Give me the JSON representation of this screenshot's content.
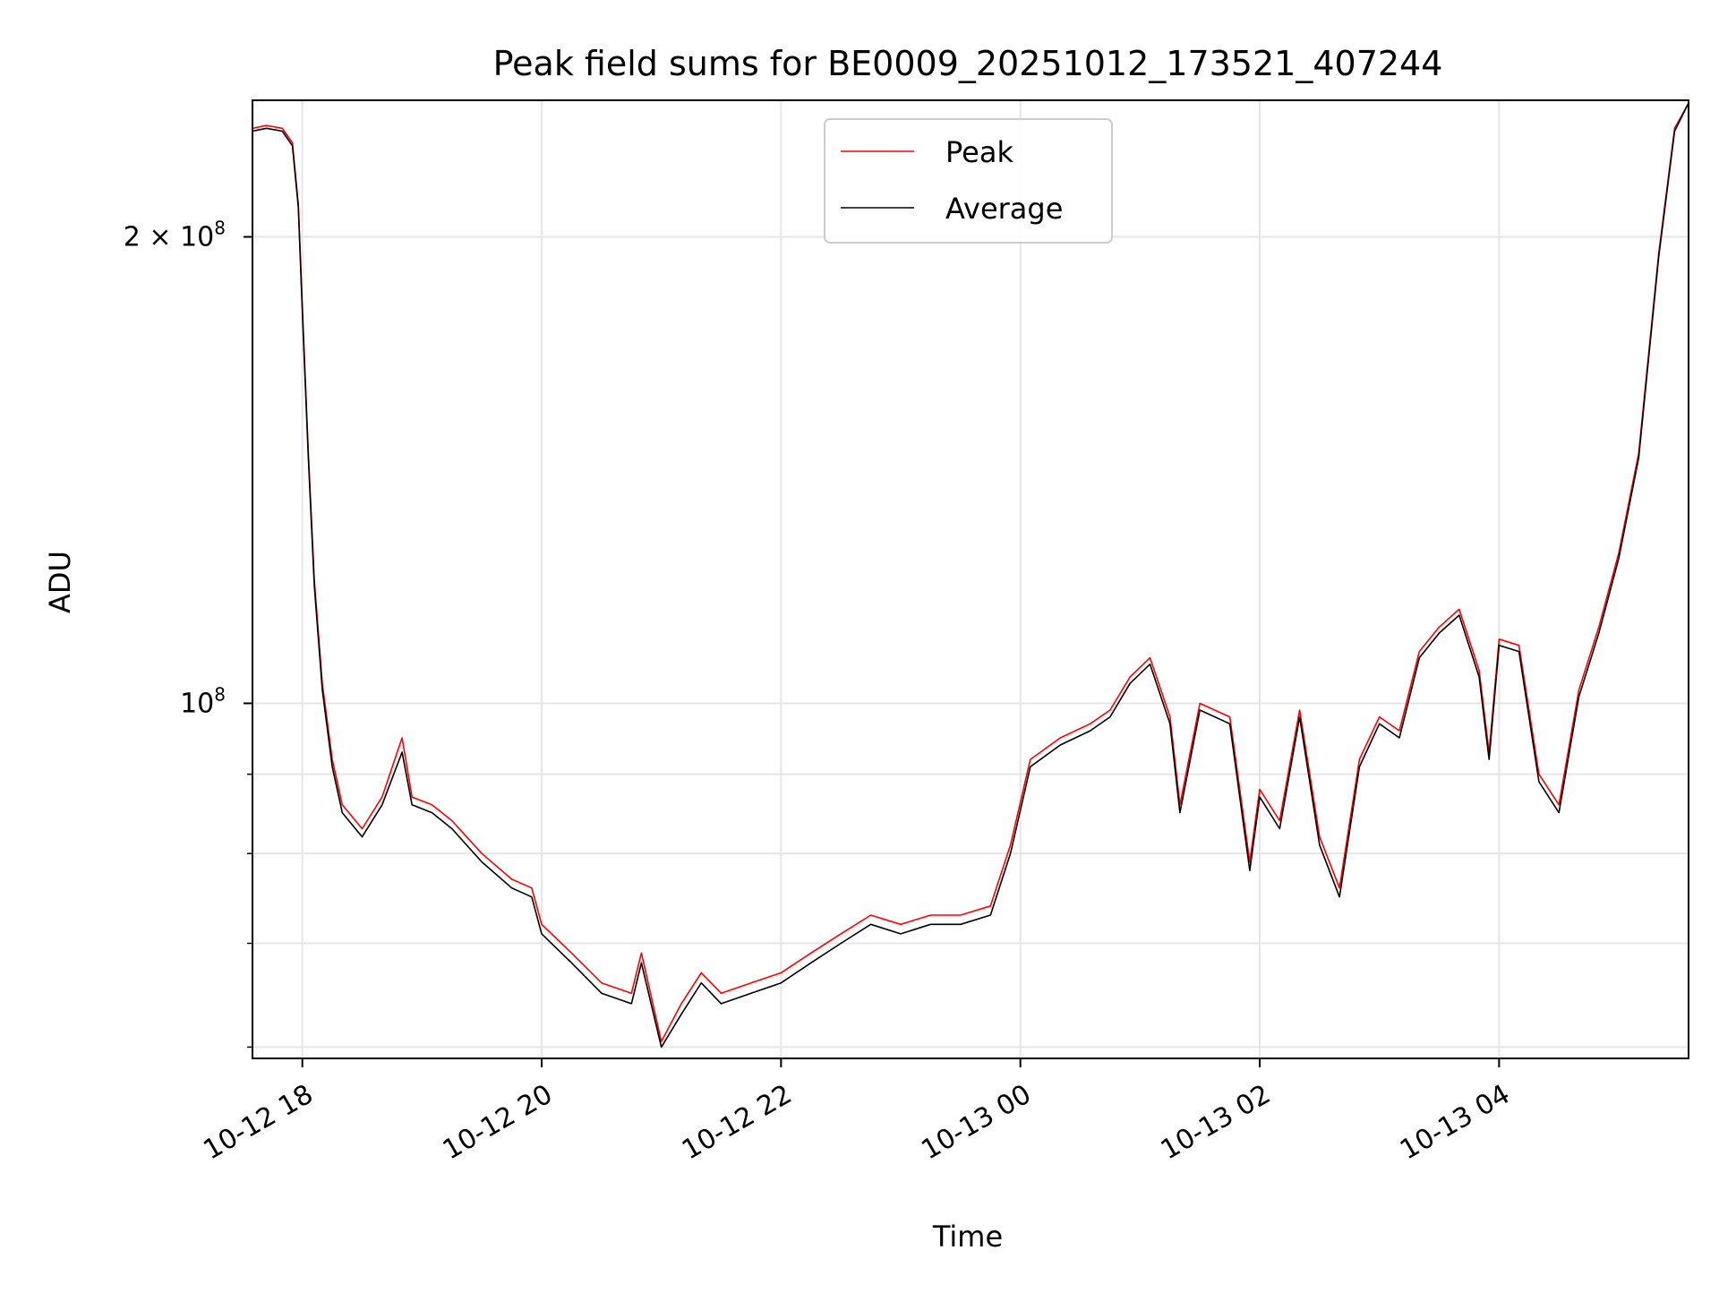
{
  "chart_data": {
    "type": "line",
    "title": "Peak field sums for BE0009_20251012_173521_407244",
    "xlabel": "Time",
    "ylabel": "ADU",
    "yscale": "log",
    "ylim": [
      59000000,
      245000000
    ],
    "xlim": [
      "2025-10-12 17:35",
      "2025-10-13 05:35"
    ],
    "grid": true,
    "legend_position": "upper-center",
    "x_ticks": [
      {
        "t": "2025-10-12 18:00",
        "label": "10-12 18"
      },
      {
        "t": "2025-10-12 20:00",
        "label": "10-12 20"
      },
      {
        "t": "2025-10-12 22:00",
        "label": "10-12 22"
      },
      {
        "t": "2025-10-13 00:00",
        "label": "10-13 00"
      },
      {
        "t": "2025-10-13 02:00",
        "label": "10-13 02"
      },
      {
        "t": "2025-10-13 04:00",
        "label": "10-13 04"
      }
    ],
    "y_major_ticks": [
      {
        "value": 100000000,
        "label": "10",
        "exp": "8"
      },
      {
        "value": 200000000,
        "label": "2 × 10",
        "exp": "8"
      }
    ],
    "y_minor_ticks": [
      60000000,
      70000000,
      80000000,
      90000000
    ],
    "series": [
      {
        "name": "Peak",
        "color": "#ff0000",
        "points": [
          [
            "2025-10-12 17:35",
            235000000
          ],
          [
            "2025-10-12 17:42",
            236000000
          ],
          [
            "2025-10-12 17:50",
            235000000
          ],
          [
            "2025-10-12 17:55",
            230000000
          ],
          [
            "2025-10-12 17:58",
            210000000
          ],
          [
            "2025-10-12 18:00",
            180000000
          ],
          [
            "2025-10-12 18:03",
            145000000
          ],
          [
            "2025-10-12 18:06",
            120000000
          ],
          [
            "2025-10-12 18:10",
            103000000
          ],
          [
            "2025-10-12 18:15",
            92000000
          ],
          [
            "2025-10-12 18:20",
            86000000
          ],
          [
            "2025-10-12 18:30",
            83000000
          ],
          [
            "2025-10-12 18:40",
            87000000
          ],
          [
            "2025-10-12 18:50",
            95000000
          ],
          [
            "2025-10-12 18:55",
            87000000
          ],
          [
            "2025-10-12 19:05",
            86000000
          ],
          [
            "2025-10-12 19:15",
            84000000
          ],
          [
            "2025-10-12 19:30",
            80000000
          ],
          [
            "2025-10-12 19:45",
            77000000
          ],
          [
            "2025-10-12 19:55",
            76000000
          ],
          [
            "2025-10-12 20:00",
            72000000
          ],
          [
            "2025-10-12 20:15",
            69000000
          ],
          [
            "2025-10-12 20:30",
            66000000
          ],
          [
            "2025-10-12 20:45",
            65000000
          ],
          [
            "2025-10-12 20:50",
            69000000
          ],
          [
            "2025-10-12 21:00",
            60500000
          ],
          [
            "2025-10-12 21:10",
            64000000
          ],
          [
            "2025-10-12 21:20",
            67000000
          ],
          [
            "2025-10-12 21:30",
            65000000
          ],
          [
            "2025-10-12 21:45",
            66000000
          ],
          [
            "2025-10-12 22:00",
            67000000
          ],
          [
            "2025-10-12 22:15",
            69000000
          ],
          [
            "2025-10-12 22:30",
            71000000
          ],
          [
            "2025-10-12 22:45",
            73000000
          ],
          [
            "2025-10-12 23:00",
            72000000
          ],
          [
            "2025-10-12 23:15",
            73000000
          ],
          [
            "2025-10-12 23:30",
            73000000
          ],
          [
            "2025-10-12 23:45",
            74000000
          ],
          [
            "2025-10-12 23:55",
            81000000
          ],
          [
            "2025-10-13 00:05",
            92000000
          ],
          [
            "2025-10-13 00:20",
            95000000
          ],
          [
            "2025-10-13 00:35",
            97000000
          ],
          [
            "2025-10-13 00:45",
            99000000
          ],
          [
            "2025-10-13 00:55",
            104000000
          ],
          [
            "2025-10-13 01:05",
            107000000
          ],
          [
            "2025-10-13 01:15",
            98000000
          ],
          [
            "2025-10-13 01:20",
            86000000
          ],
          [
            "2025-10-13 01:30",
            100000000
          ],
          [
            "2025-10-13 01:45",
            98000000
          ],
          [
            "2025-10-13 01:55",
            79000000
          ],
          [
            "2025-10-13 02:00",
            88000000
          ],
          [
            "2025-10-13 02:10",
            84000000
          ],
          [
            "2025-10-13 02:20",
            99000000
          ],
          [
            "2025-10-13 02:30",
            82000000
          ],
          [
            "2025-10-13 02:40",
            76000000
          ],
          [
            "2025-10-13 02:50",
            92000000
          ],
          [
            "2025-10-13 03:00",
            98000000
          ],
          [
            "2025-10-13 03:10",
            96000000
          ],
          [
            "2025-10-13 03:20",
            108000000
          ],
          [
            "2025-10-13 03:30",
            112000000
          ],
          [
            "2025-10-13 03:40",
            115000000
          ],
          [
            "2025-10-13 03:50",
            105000000
          ],
          [
            "2025-10-13 03:55",
            93000000
          ],
          [
            "2025-10-13 04:00",
            110000000
          ],
          [
            "2025-10-13 04:10",
            109000000
          ],
          [
            "2025-10-13 04:20",
            90000000
          ],
          [
            "2025-10-13 04:30",
            86000000
          ],
          [
            "2025-10-13 04:40",
            102000000
          ],
          [
            "2025-10-13 04:50",
            112000000
          ],
          [
            "2025-10-13 05:00",
            125000000
          ],
          [
            "2025-10-13 05:10",
            145000000
          ],
          [
            "2025-10-13 05:20",
            195000000
          ],
          [
            "2025-10-13 05:28",
            235000000
          ],
          [
            "2025-10-13 05:35",
            244000000
          ]
        ]
      },
      {
        "name": "Average",
        "color": "#000000",
        "points": [
          [
            "2025-10-12 17:35",
            234000000
          ],
          [
            "2025-10-12 17:42",
            235000000
          ],
          [
            "2025-10-12 17:50",
            234000000
          ],
          [
            "2025-10-12 17:55",
            229000000
          ],
          [
            "2025-10-12 17:58",
            209000000
          ],
          [
            "2025-10-12 18:00",
            179000000
          ],
          [
            "2025-10-12 18:03",
            144000000
          ],
          [
            "2025-10-12 18:06",
            119000000
          ],
          [
            "2025-10-12 18:10",
            102000000
          ],
          [
            "2025-10-12 18:15",
            91000000
          ],
          [
            "2025-10-12 18:20",
            85000000
          ],
          [
            "2025-10-12 18:30",
            82000000
          ],
          [
            "2025-10-12 18:40",
            86000000
          ],
          [
            "2025-10-12 18:50",
            93000000
          ],
          [
            "2025-10-12 18:55",
            86000000
          ],
          [
            "2025-10-12 19:05",
            85000000
          ],
          [
            "2025-10-12 19:15",
            83000000
          ],
          [
            "2025-10-12 19:30",
            79000000
          ],
          [
            "2025-10-12 19:45",
            76000000
          ],
          [
            "2025-10-12 19:55",
            75000000
          ],
          [
            "2025-10-12 20:00",
            71000000
          ],
          [
            "2025-10-12 20:15",
            68000000
          ],
          [
            "2025-10-12 20:30",
            65000000
          ],
          [
            "2025-10-12 20:45",
            64000000
          ],
          [
            "2025-10-12 20:50",
            68000000
          ],
          [
            "2025-10-12 21:00",
            60000000
          ],
          [
            "2025-10-12 21:10",
            63000000
          ],
          [
            "2025-10-12 21:20",
            66000000
          ],
          [
            "2025-10-12 21:30",
            64000000
          ],
          [
            "2025-10-12 21:45",
            65000000
          ],
          [
            "2025-10-12 22:00",
            66000000
          ],
          [
            "2025-10-12 22:15",
            68000000
          ],
          [
            "2025-10-12 22:30",
            70000000
          ],
          [
            "2025-10-12 22:45",
            72000000
          ],
          [
            "2025-10-12 23:00",
            71000000
          ],
          [
            "2025-10-12 23:15",
            72000000
          ],
          [
            "2025-10-12 23:30",
            72000000
          ],
          [
            "2025-10-12 23:45",
            73000000
          ],
          [
            "2025-10-12 23:55",
            80000000
          ],
          [
            "2025-10-13 00:05",
            91000000
          ],
          [
            "2025-10-13 00:20",
            94000000
          ],
          [
            "2025-10-13 00:35",
            96000000
          ],
          [
            "2025-10-13 00:45",
            98000000
          ],
          [
            "2025-10-13 00:55",
            103000000
          ],
          [
            "2025-10-13 01:05",
            106000000
          ],
          [
            "2025-10-13 01:15",
            97000000
          ],
          [
            "2025-10-13 01:20",
            85000000
          ],
          [
            "2025-10-13 01:30",
            99000000
          ],
          [
            "2025-10-13 01:45",
            97000000
          ],
          [
            "2025-10-13 01:55",
            78000000
          ],
          [
            "2025-10-13 02:00",
            87000000
          ],
          [
            "2025-10-13 02:10",
            83000000
          ],
          [
            "2025-10-13 02:20",
            98000000
          ],
          [
            "2025-10-13 02:30",
            81000000
          ],
          [
            "2025-10-13 02:40",
            75000000
          ],
          [
            "2025-10-13 02:50",
            91000000
          ],
          [
            "2025-10-13 03:00",
            97000000
          ],
          [
            "2025-10-13 03:10",
            95000000
          ],
          [
            "2025-10-13 03:20",
            107000000
          ],
          [
            "2025-10-13 03:30",
            111000000
          ],
          [
            "2025-10-13 03:40",
            114000000
          ],
          [
            "2025-10-13 03:50",
            104000000
          ],
          [
            "2025-10-13 03:55",
            92000000
          ],
          [
            "2025-10-13 04:00",
            109000000
          ],
          [
            "2025-10-13 04:10",
            108000000
          ],
          [
            "2025-10-13 04:20",
            89000000
          ],
          [
            "2025-10-13 04:30",
            85000000
          ],
          [
            "2025-10-13 04:40",
            101000000
          ],
          [
            "2025-10-13 04:50",
            111000000
          ],
          [
            "2025-10-13 05:00",
            124000000
          ],
          [
            "2025-10-13 05:10",
            144000000
          ],
          [
            "2025-10-13 05:20",
            194000000
          ],
          [
            "2025-10-13 05:28",
            234000000
          ],
          [
            "2025-10-13 05:35",
            244000000
          ]
        ]
      }
    ]
  }
}
